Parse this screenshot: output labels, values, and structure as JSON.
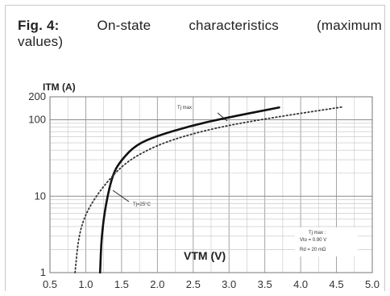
{
  "figure": {
    "caption_prefix": "Fig. 4:",
    "caption_words": [
      "On-state",
      "characteristics",
      "(maximum"
    ],
    "caption_line2": "values)"
  },
  "chart_data": {
    "type": "line",
    "title": "On-state characteristics (maximum values)",
    "xlabel": "VTM (V)",
    "ylabel": "ITM (A)",
    "x_scale": "linear",
    "y_scale": "log",
    "xlim": [
      0.5,
      5.0
    ],
    "ylim": [
      1,
      200
    ],
    "x_ticks": [
      "0.5",
      "1.0",
      "1.5",
      "2.0",
      "2.5",
      "3.0",
      "3.5",
      "4.0",
      "4.5",
      "5.0"
    ],
    "y_ticks": [
      "1",
      "10",
      "100",
      "200"
    ],
    "grid": true,
    "series": [
      {
        "name": "Tj max",
        "style": "solid",
        "color": "#111111",
        "x": [
          1.2,
          1.22,
          1.28,
          1.38,
          1.5,
          1.7,
          2.0,
          2.5,
          3.0,
          3.7
        ],
        "y": [
          1,
          3,
          8,
          20,
          30,
          47,
          62,
          85,
          108,
          145
        ]
      },
      {
        "name": "Tj=25°C",
        "style": "dotted",
        "color": "#333333",
        "x": [
          0.85,
          0.9,
          1.0,
          1.2,
          1.5,
          1.8,
          2.2,
          2.8,
          3.5,
          4.6
        ],
        "y": [
          1,
          3,
          6,
          12,
          25,
          38,
          55,
          78,
          103,
          148
        ]
      }
    ],
    "annotations": {
      "tj_max_label": "Tj max",
      "tj25_label": "Tj=25°C",
      "params_heading": "Tj max :",
      "params_vto": "Vto = 0.90 V",
      "params_rd": "Rd = 20 mΩ"
    }
  }
}
